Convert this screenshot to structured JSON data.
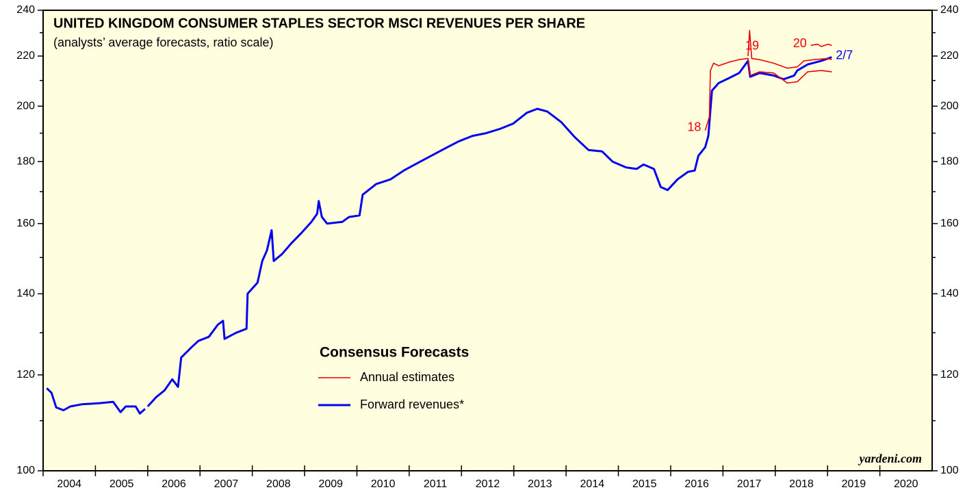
{
  "chart_data": {
    "type": "line",
    "title": "UNITED KINGDOM CONSUMER STAPLES SECTOR MSCI REVENUES PER SHARE",
    "subtitle": "(analysts’ average forecasts, ratio scale)",
    "source": "yardeni.com",
    "legend_title": "Consensus Forecasts",
    "log_scale": true,
    "xlim": [
      2004,
      2021
    ],
    "ylim": [
      100,
      240
    ],
    "yticks": [
      100,
      120,
      140,
      160,
      180,
      200,
      220,
      240
    ],
    "yminor_ticks": [
      110,
      130,
      150,
      170,
      190,
      210,
      230
    ],
    "xticks": [
      {
        "value": 2004.5,
        "label": "2004"
      },
      {
        "value": 2005.5,
        "label": "2005"
      },
      {
        "value": 2006.5,
        "label": "2006"
      },
      {
        "value": 2007.5,
        "label": "2007"
      },
      {
        "value": 2008.5,
        "label": "2008"
      },
      {
        "value": 2009.5,
        "label": "2009"
      },
      {
        "value": 2010.5,
        "label": "2010"
      },
      {
        "value": 2011.5,
        "label": "2011"
      },
      {
        "value": 2012.5,
        "label": "2012"
      },
      {
        "value": 2013.5,
        "label": "2013"
      },
      {
        "value": 2014.5,
        "label": "2014"
      },
      {
        "value": 2015.5,
        "label": "2015"
      },
      {
        "value": 2016.5,
        "label": "2016"
      },
      {
        "value": 2017.5,
        "label": "2017"
      },
      {
        "value": 2018.5,
        "label": "2018"
      },
      {
        "value": 2019.5,
        "label": "2019"
      },
      {
        "value": 2020.5,
        "label": "2020"
      }
    ],
    "series": [
      {
        "name": "Forward revenues*",
        "color": "#0000ee",
        "width": 3,
        "end_label": "2/7",
        "x": [
          2004.07,
          2004.16,
          2004.25,
          2004.39,
          2004.52,
          2004.75,
          2005.07,
          2005.34,
          2005.48,
          2005.58,
          2005.77,
          2005.85,
          2005.95,
          2005.97,
          2006.0,
          2006.16,
          2006.32,
          2006.47,
          2006.58,
          2006.64,
          2006.84,
          2006.97,
          2007.17,
          2007.34,
          2007.44,
          2007.47,
          2007.69,
          2007.89,
          2007.91,
          2008.1,
          2008.19,
          2008.28,
          2008.37,
          2008.41,
          2008.57,
          2008.74,
          2008.93,
          2009.13,
          2009.24,
          2009.27,
          2009.33,
          2009.43,
          2009.72,
          2009.85,
          2010.05,
          2010.11,
          2010.37,
          2010.64,
          2010.9,
          2011.16,
          2011.42,
          2011.68,
          2011.94,
          2012.21,
          2012.47,
          2012.73,
          2012.99,
          2013.25,
          2013.45,
          2013.64,
          2013.91,
          2014.17,
          2014.43,
          2014.69,
          2014.89,
          2015.15,
          2015.35,
          2015.48,
          2015.68,
          2015.81,
          2015.94,
          2016.13,
          2016.33,
          2016.46,
          2016.53,
          2016.66,
          2016.72,
          2016.79,
          2016.92,
          2017.12,
          2017.31,
          2017.48,
          2017.52,
          2017.7,
          2017.97,
          2018.16,
          2018.36,
          2018.42,
          2018.62,
          2018.88,
          2019.08
        ],
        "values": [
          117,
          116,
          112.8,
          112.2,
          113,
          113.5,
          113.7,
          114,
          111.8,
          113,
          113,
          111.5,
          112.5,
          null,
          113,
          115,
          116.5,
          119,
          117.3,
          124,
          126.5,
          128,
          129,
          132,
          133,
          128.5,
          130,
          131,
          140,
          143,
          149,
          152,
          158,
          149,
          151,
          154,
          157,
          160.5,
          163,
          167,
          162,
          160,
          160.5,
          162,
          162.5,
          169,
          172.5,
          174,
          177,
          179.5,
          182,
          184.5,
          187,
          189,
          190,
          191.5,
          193.5,
          197.5,
          199,
          198,
          194,
          188.5,
          184,
          183.5,
          180,
          178,
          177.5,
          179,
          177.5,
          171.5,
          170.5,
          174,
          176.5,
          177,
          182,
          185,
          189,
          206,
          209,
          211,
          213,
          218,
          211.5,
          213,
          212,
          210.5,
          212,
          214,
          216.5,
          218,
          219.5
        ]
      },
      {
        "name": "Annual estimates",
        "color": "#ee0000",
        "width": 1.6,
        "end_label": "18",
        "x": [
          2016.66,
          2016.74,
          2016.76,
          2016.82,
          2016.92,
          2017.12,
          2017.31,
          2017.48,
          2017.52,
          2017.7,
          2017.97,
          2018.1,
          2018.23,
          2018.42,
          2018.62,
          2018.88,
          2019.08
        ],
        "values": [
          191,
          196,
          214,
          217,
          216,
          217.5,
          218.5,
          219,
          212,
          213.5,
          213,
          211,
          209,
          209.5,
          213.5,
          214,
          213.5
        ]
      },
      {
        "name": "Annual estimates",
        "color": "#ee0000",
        "width": 1.6,
        "end_label": "19",
        "x": [
          2017.48,
          2017.51,
          2017.55,
          2017.7,
          2017.97,
          2018.1,
          2018.23,
          2018.42,
          2018.55,
          2018.75,
          2019.01,
          2019.08
        ],
        "values": [
          220,
          231,
          219,
          218.5,
          217,
          216,
          215,
          215.5,
          218,
          218.5,
          219,
          218.5
        ]
      },
      {
        "name": "Annual estimates",
        "color": "#ee0000",
        "width": 1.6,
        "end_label": "20",
        "x": [
          2018.68,
          2018.81,
          2018.88,
          2019.01,
          2019.08
        ],
        "values": [
          224.5,
          225,
          224,
          225,
          224.5
        ]
      }
    ]
  }
}
